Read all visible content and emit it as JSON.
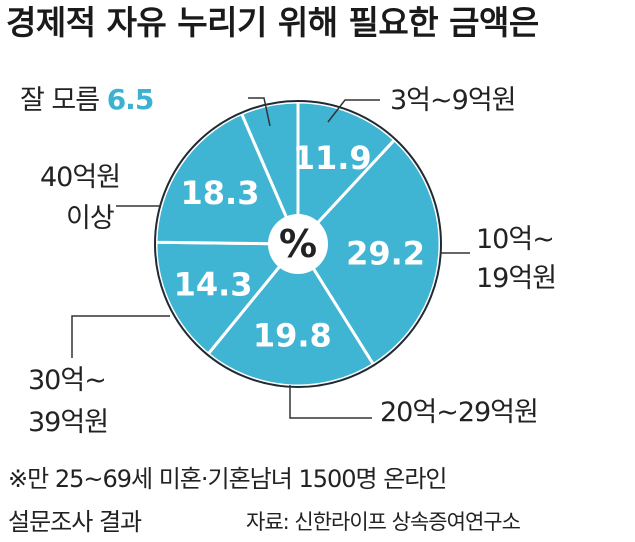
{
  "title": "경제적 자유 누리기 위해 필요한 금액은",
  "center_unit": "%",
  "footnote": {
    "line1": "※만 25~69세 미혼·기혼남녀 1500명 온라인",
    "line2": "설문조사 결과",
    "source": "자료: 신한라이프 상속증여연구소"
  },
  "colors": {
    "slice": "#40b4d3",
    "border": "#1f2a33",
    "value_text": "#ffffff",
    "highlight": "#3cb2d2"
  },
  "chart_data": {
    "type": "pie",
    "title": "경제적 자유 누리기 위해 필요한 금액은",
    "unit": "%",
    "slices": [
      {
        "label": "3억~9억원",
        "lines": [
          "3억~9억원"
        ],
        "value": 11.9,
        "value_text": "11.9"
      },
      {
        "label": "10억~19억원",
        "lines": [
          "10억~",
          "19억원"
        ],
        "value": 29.2,
        "value_text": "29.2"
      },
      {
        "label": "20억~29억원",
        "lines": [
          "20억~29억원"
        ],
        "value": 19.8,
        "value_text": "19.8"
      },
      {
        "label": "30억~39억원",
        "lines": [
          "30억~",
          "39억원"
        ],
        "value": 14.3,
        "value_text": "14.3"
      },
      {
        "label": "40억원 이상",
        "lines": [
          "40억원",
          "이상"
        ],
        "value": 18.3,
        "value_text": "18.3"
      },
      {
        "label": "잘 모름",
        "lines": [
          "잘 모름"
        ],
        "value": 6.5,
        "value_text": "6.5"
      }
    ]
  }
}
